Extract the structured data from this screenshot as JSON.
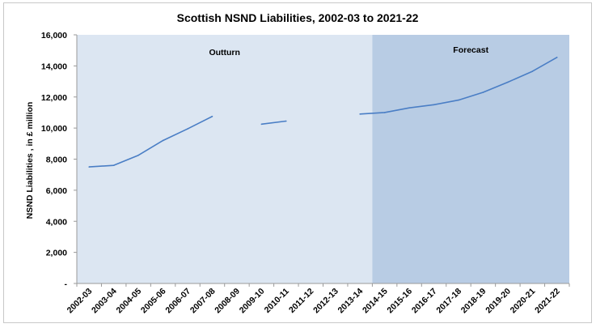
{
  "chart_data": {
    "type": "line",
    "title": "Scottish NSND Liabilities, 2002-03 to 2021-22",
    "xlabel": "",
    "ylabel": "NSND Liabilities , in £ million",
    "ylim": [
      0,
      16000
    ],
    "yticks": [
      {
        "value": 0,
        "label": "-"
      },
      {
        "value": 2000,
        "label": "2,000"
      },
      {
        "value": 4000,
        "label": "4,000"
      },
      {
        "value": 6000,
        "label": "6,000"
      },
      {
        "value": 8000,
        "label": "8,000"
      },
      {
        "value": 10000,
        "label": "10,000"
      },
      {
        "value": 12000,
        "label": "12,000"
      },
      {
        "value": 14000,
        "label": "14,000"
      },
      {
        "value": 16000,
        "label": "16,000"
      }
    ],
    "categories": [
      "2002-03",
      "2003-04",
      "2004-05",
      "2005-06",
      "2006-07",
      "2007-08",
      "2008-09",
      "2009-10",
      "2010-11",
      "2011-12",
      "2012-13",
      "2013-14",
      "2014-15",
      "2015-16",
      "2016-17",
      "2017-18",
      "2018-19",
      "2019-20",
      "2020-21",
      "2021-22"
    ],
    "series": [
      {
        "values": [
          7500,
          7600,
          8250,
          9200,
          9950,
          10750,
          null,
          10250,
          10450,
          null,
          null,
          10900,
          11000,
          11300,
          11500,
          11800,
          12300,
          12950,
          13650,
          14550
        ],
        "color": "#4a7ec5"
      }
    ],
    "regions": [
      {
        "label": "Outturn",
        "from": "2002-03",
        "to": "2013-14",
        "color": "#dce6f2"
      },
      {
        "label": "Forecast",
        "from": "2014-15",
        "to": "2021-22",
        "color": "#b8cce4"
      }
    ],
    "grid": false,
    "legend": "none"
  }
}
